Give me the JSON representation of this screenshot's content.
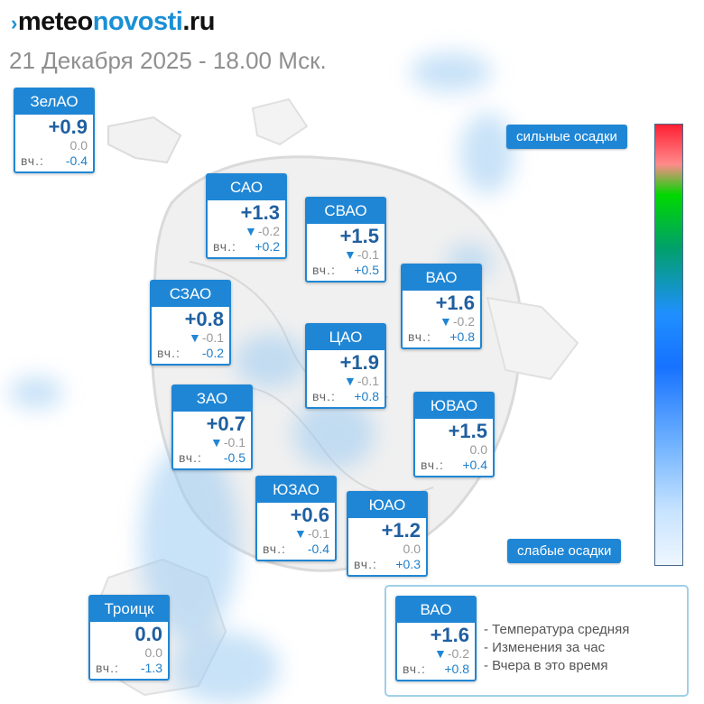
{
  "header": {
    "logo_part1": "meteo",
    "logo_part2": "novosti",
    "logo_part3": ".ru",
    "subtitle": "21 Декабря 2025 - 18.00 Мск."
  },
  "scale": {
    "top_label": "сильные осадки",
    "bottom_label": "слабые осадки",
    "colors": [
      "#ff1f33",
      "#00d800",
      "#1f8fff",
      "#eef6ff"
    ]
  },
  "yesterday_label": "вч.:",
  "districts": [
    {
      "name": "ЗелАО",
      "temp": "+0.9",
      "change": "0.0",
      "change_dir": "none",
      "yesterday": "-0.4"
    },
    {
      "name": "САО",
      "temp": "+1.3",
      "change": "-0.2",
      "change_dir": "down",
      "yesterday": "+0.2"
    },
    {
      "name": "СВАО",
      "temp": "+1.5",
      "change": "-0.1",
      "change_dir": "down",
      "yesterday": "+0.5"
    },
    {
      "name": "ВАО",
      "temp": "+1.6",
      "change": "-0.2",
      "change_dir": "down",
      "yesterday": "+0.8"
    },
    {
      "name": "СЗАО",
      "temp": "+0.8",
      "change": "-0.1",
      "change_dir": "down",
      "yesterday": "-0.2"
    },
    {
      "name": "ЦАО",
      "temp": "+1.9",
      "change": "-0.1",
      "change_dir": "down",
      "yesterday": "+0.8"
    },
    {
      "name": "ЗАО",
      "temp": "+0.7",
      "change": "-0.1",
      "change_dir": "down",
      "yesterday": "-0.5"
    },
    {
      "name": "ЮВАО",
      "temp": "+1.5",
      "change": "0.0",
      "change_dir": "none",
      "yesterday": "+0.4"
    },
    {
      "name": "ЮЗАО",
      "temp": "+0.6",
      "change": "-0.1",
      "change_dir": "down",
      "yesterday": "-0.4"
    },
    {
      "name": "ЮАО",
      "temp": "+1.2",
      "change": "0.0",
      "change_dir": "none",
      "yesterday": "+0.3"
    },
    {
      "name": "Троицк",
      "temp": "0.0",
      "change": "0.0",
      "change_dir": "none",
      "yesterday": "-1.3"
    }
  ],
  "legend": {
    "sample": {
      "name": "ВАО",
      "temp": "+1.6",
      "change": "-0.2",
      "change_dir": "down",
      "yesterday": "+0.8"
    },
    "line_temp": "- Температура средняя",
    "line_change": "- Изменения за час",
    "line_yesterday": "- Вчера в это время"
  }
}
